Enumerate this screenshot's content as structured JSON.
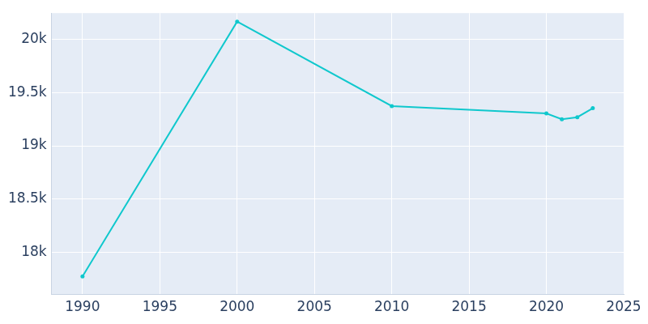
{
  "chart_data": {
    "type": "line",
    "x": [
      1990,
      2000,
      2010,
      2020,
      2021,
      2022,
      2023
    ],
    "values": [
      17770,
      20170,
      19375,
      19305,
      19250,
      19270,
      19355
    ],
    "color": "#10c8cd",
    "marker": "circle",
    "xlim": [
      1988,
      2025
    ],
    "xticks": [
      1990,
      1995,
      2000,
      2005,
      2010,
      2015,
      2020,
      2025
    ],
    "ylim": [
      17600,
      20250
    ],
    "yticks": [
      {
        "value": 18000,
        "label": "18k"
      },
      {
        "value": 18500,
        "label": "18.5k"
      },
      {
        "value": 19000,
        "label": "19k"
      },
      {
        "value": 19500,
        "label": "19.5k"
      },
      {
        "value": 20000,
        "label": "20k"
      }
    ],
    "grid": true
  }
}
